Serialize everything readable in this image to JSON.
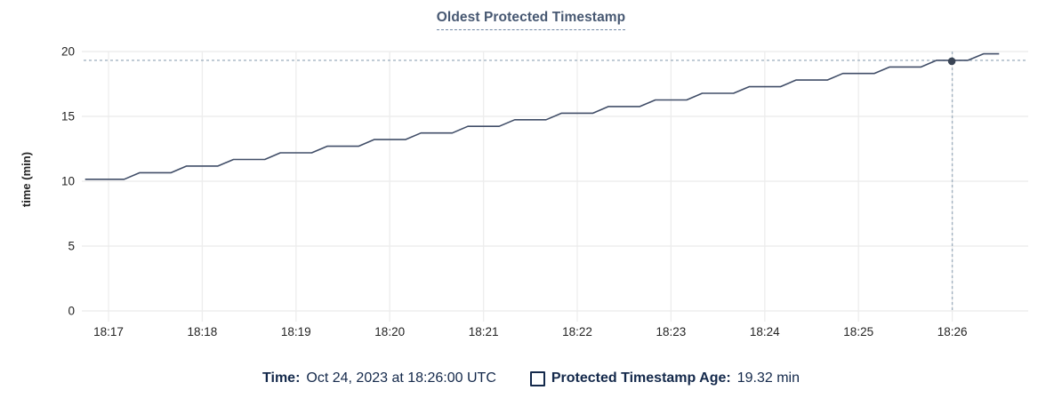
{
  "chart": {
    "title": "Oldest Protected Timestamp",
    "ylabel": "time (min)"
  },
  "legend": {
    "time_label": "Time:",
    "time_value": "Oct 24, 2023 at 18:26:00 UTC",
    "series_label": "Protected Timestamp Age:",
    "series_value": "19.32 min"
  },
  "chart_data": {
    "type": "line",
    "title": "Oldest Protected Timestamp",
    "xlabel": "",
    "ylabel": "time (min)",
    "ylim": [
      0,
      20
    ],
    "yticks": [
      0,
      5,
      10,
      15,
      20
    ],
    "xticks": [
      "18:17",
      "18:18",
      "18:19",
      "18:20",
      "18:21",
      "18:22",
      "18:23",
      "18:24",
      "18:25",
      "18:26"
    ],
    "grid": true,
    "legend_position": "bottom",
    "series": [
      {
        "name": "Protected Timestamp Age",
        "unit": "min",
        "color": "#414e68",
        "points": [
          [
            "18:16:45",
            10.15
          ],
          [
            "18:17:10",
            10.15
          ],
          [
            "18:17:20",
            10.66
          ],
          [
            "18:17:40",
            10.66
          ],
          [
            "18:17:50",
            11.17
          ],
          [
            "18:18:10",
            11.17
          ],
          [
            "18:18:20",
            11.68
          ],
          [
            "18:18:40",
            11.68
          ],
          [
            "18:18:50",
            12.19
          ],
          [
            "18:19:10",
            12.19
          ],
          [
            "18:19:20",
            12.7
          ],
          [
            "18:19:40",
            12.7
          ],
          [
            "18:19:50",
            13.21
          ],
          [
            "18:20:10",
            13.21
          ],
          [
            "18:20:20",
            13.72
          ],
          [
            "18:20:40",
            13.72
          ],
          [
            "18:20:50",
            14.23
          ],
          [
            "18:21:10",
            14.23
          ],
          [
            "18:21:20",
            14.74
          ],
          [
            "18:21:40",
            14.74
          ],
          [
            "18:21:50",
            15.25
          ],
          [
            "18:22:10",
            15.25
          ],
          [
            "18:22:20",
            15.76
          ],
          [
            "18:22:40",
            15.76
          ],
          [
            "18:22:50",
            16.27
          ],
          [
            "18:23:10",
            16.27
          ],
          [
            "18:23:20",
            16.78
          ],
          [
            "18:23:40",
            16.78
          ],
          [
            "18:23:50",
            17.29
          ],
          [
            "18:24:10",
            17.29
          ],
          [
            "18:24:20",
            17.8
          ],
          [
            "18:24:40",
            17.8
          ],
          [
            "18:24:50",
            18.31
          ],
          [
            "18:25:10",
            18.31
          ],
          [
            "18:25:20",
            18.81
          ],
          [
            "18:25:40",
            18.81
          ],
          [
            "18:25:50",
            19.32
          ],
          [
            "18:26:10",
            19.32
          ],
          [
            "18:26:20",
            19.82
          ],
          [
            "18:26:30",
            19.82
          ]
        ]
      }
    ],
    "hover": {
      "time": "18:26:00",
      "time_display": "Oct 24, 2023 at 18:26:00 UTC",
      "value": 19.32,
      "value_display": "19.32 min"
    },
    "colors": {
      "line": "#414e68",
      "dot": "#394455",
      "grid_h": "#e9e9e9",
      "grid_v": "#ededed",
      "crosshair": "#a3b3c2",
      "title": "#475872",
      "legend_text": "#14294b",
      "tick_text": "#242424"
    }
  }
}
